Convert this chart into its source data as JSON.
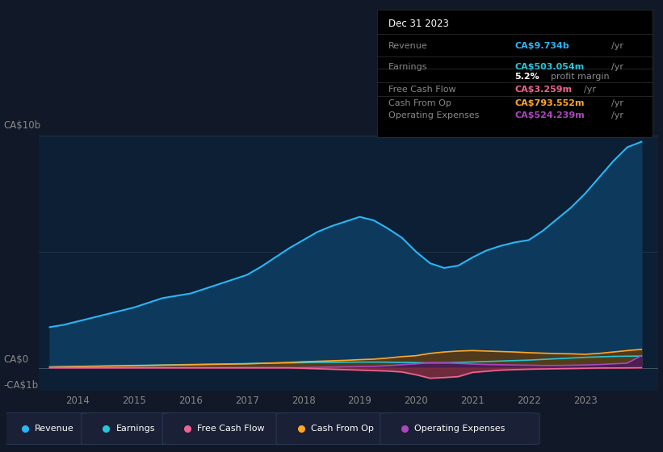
{
  "bg_color": "#111827",
  "chart_bg": "#0d1f35",
  "ylim": [
    -1000000000.0,
    10000000000.0
  ],
  "xlim": [
    2013.3,
    2024.3
  ],
  "x_ticks": [
    2014,
    2015,
    2016,
    2017,
    2018,
    2019,
    2020,
    2021,
    2022,
    2023
  ],
  "revenue_color": "#29b6f6",
  "earnings_color": "#26c6da",
  "fcf_color": "#f06292",
  "cashfromop_color": "#ffa726",
  "opex_color": "#ab47bc",
  "revenue_fill": "#0d3a5c",
  "earnings_fill": "#1a5c50",
  "fcf_fill": "#7b2d40",
  "cashfromop_fill": "#5c3a10",
  "opex_fill": "#4a1a5c",
  "years": [
    2013.5,
    2013.75,
    2014.0,
    2014.25,
    2014.5,
    2014.75,
    2015.0,
    2015.25,
    2015.5,
    2015.75,
    2016.0,
    2016.25,
    2016.5,
    2016.75,
    2017.0,
    2017.25,
    2017.5,
    2017.75,
    2018.0,
    2018.25,
    2018.5,
    2018.75,
    2019.0,
    2019.25,
    2019.5,
    2019.75,
    2020.0,
    2020.25,
    2020.5,
    2020.75,
    2021.0,
    2021.25,
    2021.5,
    2021.75,
    2022.0,
    2022.25,
    2022.5,
    2022.75,
    2023.0,
    2023.25,
    2023.5,
    2023.75,
    2024.0
  ],
  "revenue": [
    1750000000.0,
    1850000000.0,
    2000000000.0,
    2150000000.0,
    2300000000.0,
    2450000000.0,
    2600000000.0,
    2800000000.0,
    3000000000.0,
    3100000000.0,
    3200000000.0,
    3400000000.0,
    3600000000.0,
    3800000000.0,
    4000000000.0,
    4350000000.0,
    4750000000.0,
    5150000000.0,
    5500000000.0,
    5850000000.0,
    6100000000.0,
    6300000000.0,
    6500000000.0,
    6350000000.0,
    6000000000.0,
    5600000000.0,
    5000000000.0,
    4500000000.0,
    4300000000.0,
    4400000000.0,
    4750000000.0,
    5050000000.0,
    5250000000.0,
    5400000000.0,
    5500000000.0,
    5900000000.0,
    6400000000.0,
    6900000000.0,
    7500000000.0,
    8200000000.0,
    8900000000.0,
    9500000000.0,
    9734000000.0
  ],
  "earnings": [
    40000000.0,
    50000000.0,
    60000000.0,
    70000000.0,
    80000000.0,
    90000000.0,
    100000000.0,
    110000000.0,
    120000000.0,
    130000000.0,
    140000000.0,
    150000000.0,
    160000000.0,
    170000000.0,
    180000000.0,
    190000000.0,
    200000000.0,
    210000000.0,
    220000000.0,
    230000000.0,
    235000000.0,
    240000000.0,
    245000000.0,
    245000000.0,
    240000000.0,
    230000000.0,
    220000000.0,
    210000000.0,
    215000000.0,
    230000000.0,
    250000000.0,
    270000000.0,
    290000000.0,
    310000000.0,
    330000000.0,
    360000000.0,
    390000000.0,
    420000000.0,
    450000000.0,
    470000000.0,
    490000000.0,
    500000000.0,
    503054000.0
  ],
  "free_cash_flow": [
    0.0,
    0.0,
    0.0,
    0.0,
    0.0,
    0.0,
    0.0,
    0.0,
    0.0,
    0.0,
    0.0,
    0.0,
    0.0,
    0.0,
    0.0,
    0.0,
    0.0,
    0.0,
    -20000000.0,
    -40000000.0,
    -60000000.0,
    -80000000.0,
    -100000000.0,
    -120000000.0,
    -140000000.0,
    -180000000.0,
    -300000000.0,
    -450000000.0,
    -420000000.0,
    -380000000.0,
    -200000000.0,
    -150000000.0,
    -100000000.0,
    -80000000.0,
    -60000000.0,
    -50000000.0,
    -40000000.0,
    -30000000.0,
    -20000000.0,
    -10000000.0,
    -8000000.0,
    -5000000.0,
    3259000.0
  ],
  "cash_from_op": [
    30000000.0,
    40000000.0,
    50000000.0,
    60000000.0,
    70000000.0,
    80000000.0,
    90000000.0,
    100000000.0,
    110000000.0,
    120000000.0,
    130000000.0,
    140000000.0,
    150000000.0,
    160000000.0,
    170000000.0,
    190000000.0,
    210000000.0,
    230000000.0,
    260000000.0,
    280000000.0,
    300000000.0,
    320000000.0,
    350000000.0,
    370000000.0,
    420000000.0,
    480000000.0,
    520000000.0,
    620000000.0,
    680000000.0,
    720000000.0,
    740000000.0,
    720000000.0,
    700000000.0,
    680000000.0,
    650000000.0,
    630000000.0,
    610000000.0,
    600000000.0,
    580000000.0,
    620000000.0,
    680000000.0,
    740000000.0,
    793552000.0
  ],
  "op_expenses": [
    0.0,
    0.0,
    0.0,
    0.0,
    0.0,
    0.0,
    0.0,
    0.0,
    0.0,
    0.0,
    0.0,
    0.0,
    0.0,
    0.0,
    0.0,
    0.0,
    0.0,
    0.0,
    10000000.0,
    20000000.0,
    30000000.0,
    40000000.0,
    50000000.0,
    60000000.0,
    90000000.0,
    130000000.0,
    170000000.0,
    220000000.0,
    210000000.0,
    190000000.0,
    160000000.0,
    140000000.0,
    130000000.0,
    120000000.0,
    110000000.0,
    100000000.0,
    100000000.0,
    110000000.0,
    120000000.0,
    140000000.0,
    170000000.0,
    200000000.0,
    524239000.0
  ],
  "info_box": {
    "date": "Dec 31 2023",
    "revenue_label": "Revenue",
    "revenue_value": "CA$9.734b",
    "revenue_unit": "/yr",
    "earnings_label": "Earnings",
    "earnings_value": "CA$503.054m",
    "earnings_unit": "/yr",
    "margin_value": "5.2%",
    "margin_label": "profit margin",
    "fcf_label": "Free Cash Flow",
    "fcf_value": "CA$3.259m",
    "fcf_unit": "/yr",
    "cashop_label": "Cash From Op",
    "cashop_value": "CA$793.552m",
    "cashop_unit": "/yr",
    "opex_label": "Operating Expenses",
    "opex_value": "CA$524.239m",
    "opex_unit": "/yr"
  },
  "legend": [
    {
      "label": "Revenue",
      "color": "#29b6f6"
    },
    {
      "label": "Earnings",
      "color": "#26c6da"
    },
    {
      "label": "Free Cash Flow",
      "color": "#f06292"
    },
    {
      "label": "Cash From Op",
      "color": "#ffa726"
    },
    {
      "label": "Operating Expenses",
      "color": "#ab47bc"
    }
  ]
}
